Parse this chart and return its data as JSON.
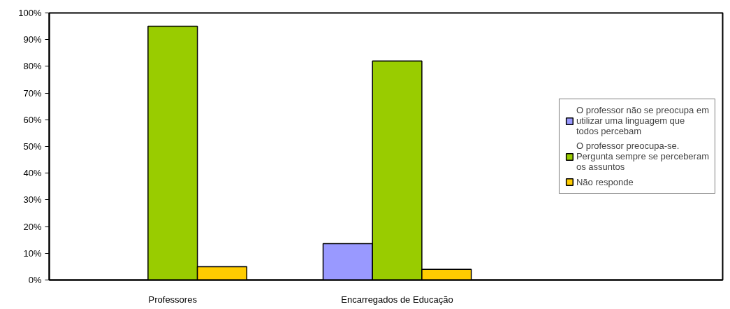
{
  "chart_data": {
    "type": "bar",
    "categories": [
      "Professores",
      "Encarregados de Educação"
    ],
    "series": [
      {
        "name": "O professor não se preocupa em utilizar uma linguagem que todos percebam",
        "color": "#9999ff",
        "values": [
          null,
          13.6
        ]
      },
      {
        "name": "O professor preocupa-se. Pergunta sempre se perceberam os assuntos",
        "color": "#99cc00",
        "values": [
          95,
          82
        ]
      },
      {
        "name": "Não responde",
        "color": "#ffcc00",
        "values": [
          5,
          4
        ]
      }
    ],
    "ylim": [
      0,
      100
    ],
    "yticks": [
      {
        "value": 0,
        "label": "0%"
      },
      {
        "value": 10,
        "label": "10%"
      },
      {
        "value": 20,
        "label": "20%"
      },
      {
        "value": 30,
        "label": "30%"
      },
      {
        "value": 40,
        "label": "40%"
      },
      {
        "value": 50,
        "label": "50%"
      },
      {
        "value": 60,
        "label": "60%"
      },
      {
        "value": 70,
        "label": "70%"
      },
      {
        "value": 80,
        "label": "80%"
      },
      {
        "value": 90,
        "label": "90%"
      },
      {
        "value": 100,
        "label": "100%"
      }
    ],
    "grid": false,
    "legend": "right"
  }
}
